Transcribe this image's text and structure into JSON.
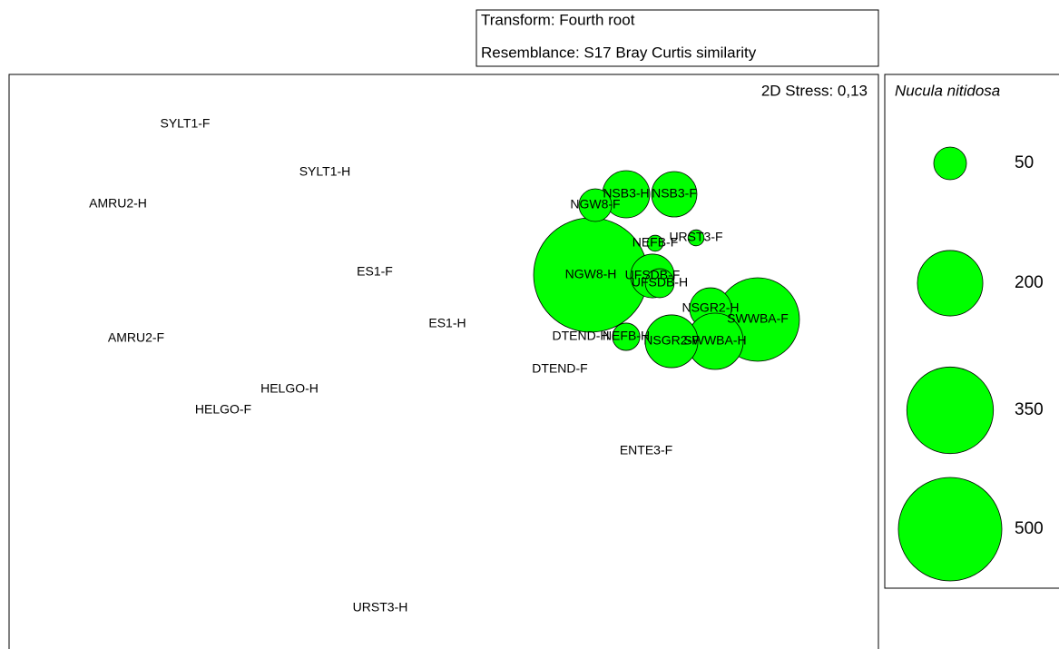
{
  "chart_data": {
    "type": "bubble",
    "title_lines": [
      "Transform: Fourth root",
      "Resemblance: S17 Bray Curtis similarity"
    ],
    "stress_label": "2D Stress: 0,13",
    "size_legend_title": "Nucula nitidosa",
    "size_legend": [
      50,
      200,
      350,
      500
    ],
    "color": "#00ff00",
    "xlim": [
      0,
      9.58
    ],
    "ylim": [
      0,
      6.35
    ],
    "labels": [
      "SYLT1-F",
      "SYLT1-H",
      "AMRU2-H",
      "ES1-F",
      "ES1-H",
      "AMRU2-F",
      "HELGO-H",
      "HELGO-F",
      "DTEND-F",
      "ENTE3-F",
      "URST3-H",
      "NGW8-H",
      "SWWBA-F",
      "NSB3-H",
      "NSB3-F",
      "NGW8-F",
      "URST3-F",
      "NEFB-F",
      "UFSDB-F",
      "UFSDB-H",
      "NSGR2-H",
      "SWWBA-H",
      "NSGR2-F",
      "NEFB-H",
      "DTEND-H"
    ],
    "x": [
      1.94,
      3.48,
      1.2,
      4.03,
      4.83,
      1.4,
      3.09,
      2.36,
      6.07,
      7.02,
      4.09,
      6.41,
      8.25,
      6.8,
      7.33,
      6.46,
      7.57,
      7.12,
      7.09,
      7.17,
      7.73,
      7.78,
      7.3,
      6.8,
      6.3
    ],
    "y": [
      5.8,
      5.27,
      4.92,
      4.17,
      3.6,
      3.44,
      2.88,
      2.65,
      3.1,
      2.2,
      0.47,
      4.14,
      3.65,
      5.03,
      5.03,
      4.91,
      4.55,
      4.49,
      4.13,
      4.05,
      3.77,
      3.41,
      3.41,
      3.46,
      3.46
    ],
    "sizes": [
      0,
      0,
      0,
      0,
      0,
      0,
      0,
      0,
      0,
      0,
      0,
      610,
      325,
      104,
      96,
      50,
      12,
      12,
      89,
      39,
      81,
      148,
      130,
      35,
      0
    ]
  }
}
